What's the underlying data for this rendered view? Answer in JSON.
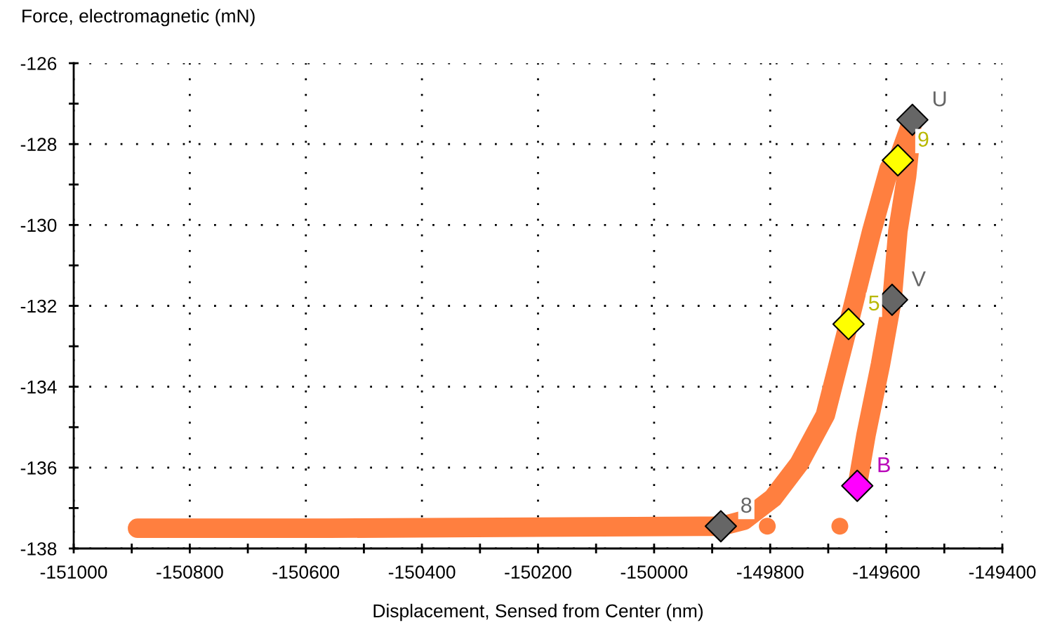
{
  "chart_data": {
    "type": "line",
    "xlabel": "Displacement, Sensed from Center (nm)",
    "ylabel": "Force, electromagnetic (mN)",
    "xlim": [
      -151000,
      -149400
    ],
    "ylim": [
      -138,
      -126
    ],
    "xticks": [
      -151000,
      {
        "value": -150900,
        "label": null
      },
      -150800,
      {
        "value": -150700,
        "label": null
      },
      -150600,
      {
        "value": -150500,
        "label": null
      },
      -150400,
      {
        "value": -150300,
        "label": null
      },
      -150200,
      {
        "value": -150100,
        "label": null
      },
      -150000,
      {
        "value": -149900,
        "label": null
      },
      -149800,
      {
        "value": -149700,
        "label": null
      },
      -149600,
      {
        "value": -149500,
        "label": null
      },
      -149400
    ],
    "yticks": [
      -138,
      {
        "value": -137,
        "label": null
      },
      -136,
      {
        "value": -135,
        "label": null
      },
      -134,
      {
        "value": -133,
        "label": null
      },
      -132,
      {
        "value": -131,
        "label": null
      },
      -130,
      {
        "value": -129,
        "label": null
      },
      -128,
      {
        "value": -127,
        "label": null
      },
      -126
    ],
    "grid": true,
    "legend": false,
    "series": [
      {
        "color": "#ff7f3f",
        "x": [
          -150890,
          -150560,
          -149920,
          -149885,
          -149845,
          -149795,
          -149750,
          -149705,
          -149665,
          -149625,
          -149595,
          -149580,
          -149555,
          -149565,
          -149580,
          -149590,
          -149610,
          -149635,
          -149650
        ],
        "values": [
          -137.5,
          -137.5,
          -137.45,
          -137.45,
          -137.3,
          -136.75,
          -135.9,
          -134.7,
          -132.45,
          -130.15,
          -128.6,
          -128.4,
          -127.4,
          -128.8,
          -130.15,
          -131.85,
          -133.45,
          -135.2,
          -136.45
        ]
      },
      {
        "type": "scatter",
        "marker": "circle",
        "color": "#ff7f3f",
        "x": [
          -149805,
          -149680
        ],
        "values": [
          -137.45,
          -137.45
        ]
      },
      {
        "type": "scatter",
        "marker": "diamond",
        "x": [
          -149555,
          -149580,
          -149665,
          -149590,
          -149650,
          -149885
        ],
        "values": [
          -127.4,
          -128.4,
          -132.45,
          -131.85,
          -136.45,
          -137.45
        ],
        "colors": [
          "#666666",
          "#ffff00",
          "#ffff00",
          "#666666",
          "#ff00ff",
          "#666666"
        ]
      }
    ],
    "annotations": [
      {
        "text": "U",
        "x": -149555,
        "y": -127.4
      },
      {
        "text": "9",
        "x": -149580,
        "y": -128.4
      },
      {
        "text": "5",
        "x": -149665,
        "y": -132.45
      },
      {
        "text": "V",
        "x": -149590,
        "y": -131.85
      },
      {
        "text": "B",
        "x": -149650,
        "y": -136.45
      },
      {
        "text": "8",
        "x": -149885,
        "y": -137.45
      }
    ]
  }
}
